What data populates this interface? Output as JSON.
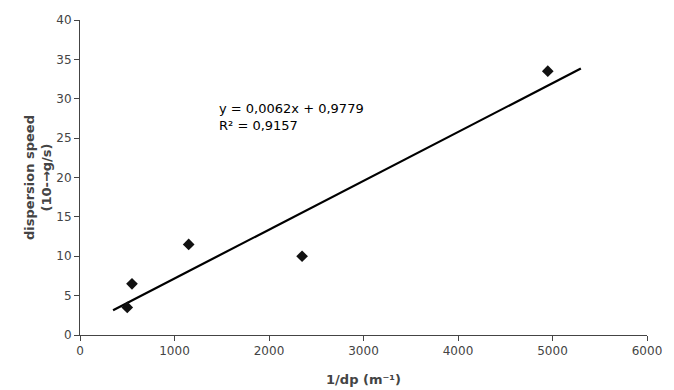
{
  "chart_data": {
    "type": "scatter",
    "xlabel": "1/dp (m⁻¹)",
    "ylabel": "dispersion speed\n(10-→g/s)",
    "series": [
      {
        "type": "line",
        "color": "#000000",
        "line_style": "solid",
        "x": [
          350,
          5300
        ],
        "values": [
          3.1479,
          33.8379
        ]
      },
      {
        "type": "scatter",
        "color": "#111111",
        "marker": "diamond",
        "x": [
          500,
          550,
          1150,
          2350,
          4950
        ],
        "values": [
          3.5,
          6.5,
          11.5,
          10.0,
          33.5
        ]
      }
    ],
    "annotations": [
      {
        "text": "y = 0,0062x + 0,9779\nR² = 0,9157",
        "x": 1450,
        "y": 30
      }
    ],
    "xlim": [
      0,
      6000
    ],
    "ylim": [
      0,
      40
    ],
    "xticks": [
      0,
      1000,
      2000,
      3000,
      4000,
      5000,
      6000
    ],
    "yticks": [
      0,
      5,
      10,
      15,
      20,
      25,
      30,
      35,
      40
    ],
    "grid": false
  }
}
